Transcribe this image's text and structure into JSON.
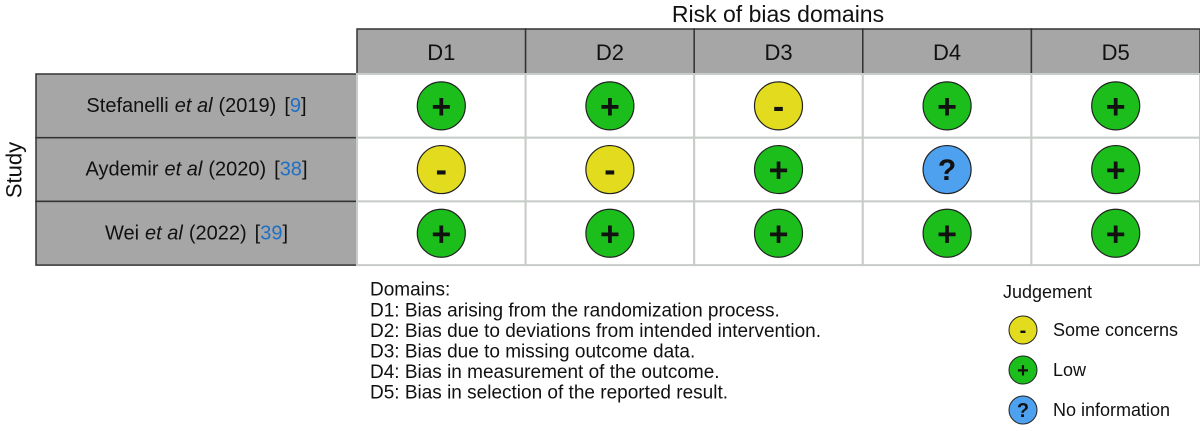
{
  "title": "Risk of bias domains",
  "y_label": "Study",
  "domains": [
    "D1",
    "D2",
    "D3",
    "D4",
    "D5"
  ],
  "studies": [
    {
      "name": "Stefanelli",
      "etal": "et al",
      "year": "(2019)",
      "open": "[",
      "ref": "9",
      "close": "]",
      "judgements": [
        "+",
        "+",
        "-",
        "+",
        "+"
      ]
    },
    {
      "name": "Aydemir",
      "etal": "et al",
      "year": "(2020)",
      "open": "[",
      "ref": "38",
      "close": "]",
      "judgements": [
        "-",
        "-",
        "+",
        "?",
        "+"
      ]
    },
    {
      "name": "Wei",
      "etal": "et al",
      "year": "(2022)",
      "open": "[",
      "ref": "39",
      "close": "]",
      "judgements": [
        "+",
        "+",
        "+",
        "+",
        "+"
      ]
    }
  ],
  "domains_legend": {
    "title": "Domains:",
    "items": [
      "D1: Bias arising from the randomization process.",
      "D2: Bias due to deviations from intended intervention.",
      "D3: Bias due to missing outcome data.",
      "D4: Bias in measurement of the outcome.",
      "D5: Bias in selection of the reported result."
    ]
  },
  "judgement_legend": {
    "title": "Judgement",
    "items": [
      {
        "symbol": "-",
        "label": "Some concerns",
        "color": "#e3dc1e"
      },
      {
        "symbol": "+",
        "label": "Low",
        "color": "#1cbe1c"
      },
      {
        "symbol": "?",
        "label": "No information",
        "color": "#4ea1ef"
      }
    ]
  }
}
